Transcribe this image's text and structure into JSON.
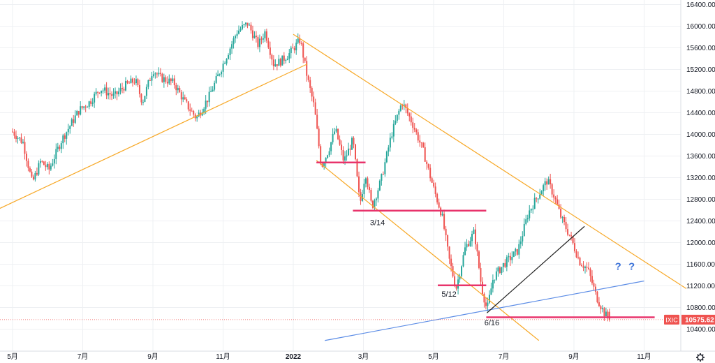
{
  "chart_data": {
    "type": "candlestick",
    "symbol": "IXIC",
    "last_price_label": "10575.62",
    "x_tick_labels": [
      "5月",
      "7月",
      "9月",
      "11月",
      "2022",
      "3月",
      "5月",
      "7月",
      "9月",
      "11月"
    ],
    "y_ticks": [
      "16400.00",
      "16000.00",
      "15600.00",
      "15200.00",
      "14800.00",
      "14400.00",
      "14000.00",
      "13600.00",
      "13200.00",
      "12800.00",
      "12400.00",
      "12000.00",
      "11600.00",
      "11200.00",
      "10800.00",
      "10400.00"
    ],
    "ylim": [
      10190,
      16520
    ],
    "annotations": [
      {
        "text": "3/14",
        "kind": "date"
      },
      {
        "text": "5/12",
        "kind": "date"
      },
      {
        "text": "6/16",
        "kind": "date"
      },
      {
        "text": "? ?",
        "kind": "question"
      }
    ],
    "price_path": [
      [
        0,
        14050
      ],
      [
        0.15,
        13850
      ],
      [
        0.28,
        13100
      ],
      [
        0.4,
        13500
      ],
      [
        0.52,
        13350
      ],
      [
        0.7,
        13900
      ],
      [
        0.95,
        14450
      ],
      [
        1.1,
        14600
      ],
      [
        1.25,
        14850
      ],
      [
        1.45,
        14700
      ],
      [
        1.6,
        14900
      ],
      [
        1.75,
        15000
      ],
      [
        1.85,
        14600
      ],
      [
        2.0,
        15200
      ],
      [
        2.1,
        15050
      ],
      [
        2.3,
        14950
      ],
      [
        2.45,
        14600
      ],
      [
        2.62,
        14300
      ],
      [
        2.8,
        14700
      ],
      [
        3.0,
        15300
      ],
      [
        3.2,
        15900
      ],
      [
        3.35,
        16050
      ],
      [
        3.5,
        15650
      ],
      [
        3.6,
        15900
      ],
      [
        3.72,
        15300
      ],
      [
        3.82,
        15350
      ],
      [
        3.95,
        15500
      ],
      [
        4.1,
        15750
      ],
      [
        4.2,
        15050
      ],
      [
        4.3,
        14500
      ],
      [
        4.4,
        13400
      ],
      [
        4.5,
        13700
      ],
      [
        4.6,
        14100
      ],
      [
        4.72,
        13500
      ],
      [
        4.85,
        13900
      ],
      [
        4.95,
        12700
      ],
      [
        5.03,
        13300
      ],
      [
        5.12,
        12650
      ],
      [
        5.25,
        13150
      ],
      [
        5.4,
        14000
      ],
      [
        5.55,
        14600
      ],
      [
        5.7,
        14200
      ],
      [
        5.85,
        13700
      ],
      [
        6.0,
        13000
      ],
      [
        6.12,
        12500
      ],
      [
        6.22,
        11700
      ],
      [
        6.32,
        11150
      ],
      [
        6.45,
        11900
      ],
      [
        6.58,
        12200
      ],
      [
        6.68,
        11200
      ],
      [
        6.76,
        10750
      ],
      [
        6.85,
        11350
      ],
      [
        7.0,
        11600
      ],
      [
        7.2,
        11850
      ],
      [
        7.35,
        12550
      ],
      [
        7.5,
        12900
      ],
      [
        7.62,
        13150
      ],
      [
        7.72,
        12850
      ],
      [
        7.82,
        12450
      ],
      [
        7.95,
        12100
      ],
      [
        8.08,
        11650
      ],
      [
        8.2,
        11500
      ],
      [
        8.32,
        11000
      ],
      [
        8.43,
        10700
      ],
      [
        8.5,
        10580
      ]
    ],
    "horizontal_levels": [
      {
        "y": 13480,
        "x0": 4.33,
        "x1": 5.03
      },
      {
        "y": 12590,
        "x0": 4.85,
        "x1": 6.75
      },
      {
        "y": 11210,
        "x0": 6.06,
        "x1": 6.75
      },
      {
        "y": 10620,
        "x0": 6.75,
        "x1": 9.15
      }
    ],
    "trend_lines": [
      {
        "kind": "support-uptrend",
        "color": "#f7a826",
        "from": [
          -0.2,
          12620
        ],
        "to": [
          4.2,
          15300
        ]
      },
      {
        "kind": "upper-downtrend",
        "color": "#f7a826",
        "from": [
          4.0,
          15850
        ],
        "to": [
          9.6,
          11150
        ]
      },
      {
        "kind": "lower-downtrend",
        "color": "#f7a826",
        "from": [
          4.33,
          13520
        ],
        "to": [
          7.5,
          10190
        ]
      },
      {
        "kind": "blue-uptrend",
        "color": "#5b8ce6",
        "from": [
          4.45,
          10190
        ],
        "to": [
          9.0,
          11290
        ]
      },
      {
        "kind": "rally-line",
        "color": "#202020",
        "from": [
          6.76,
          10700
        ],
        "to": [
          8.15,
          12300
        ]
      }
    ],
    "colors": {
      "up": "#26a69a",
      "down": "#ef5350",
      "level": "#e8336b",
      "grid": "#eef0f3"
    }
  }
}
